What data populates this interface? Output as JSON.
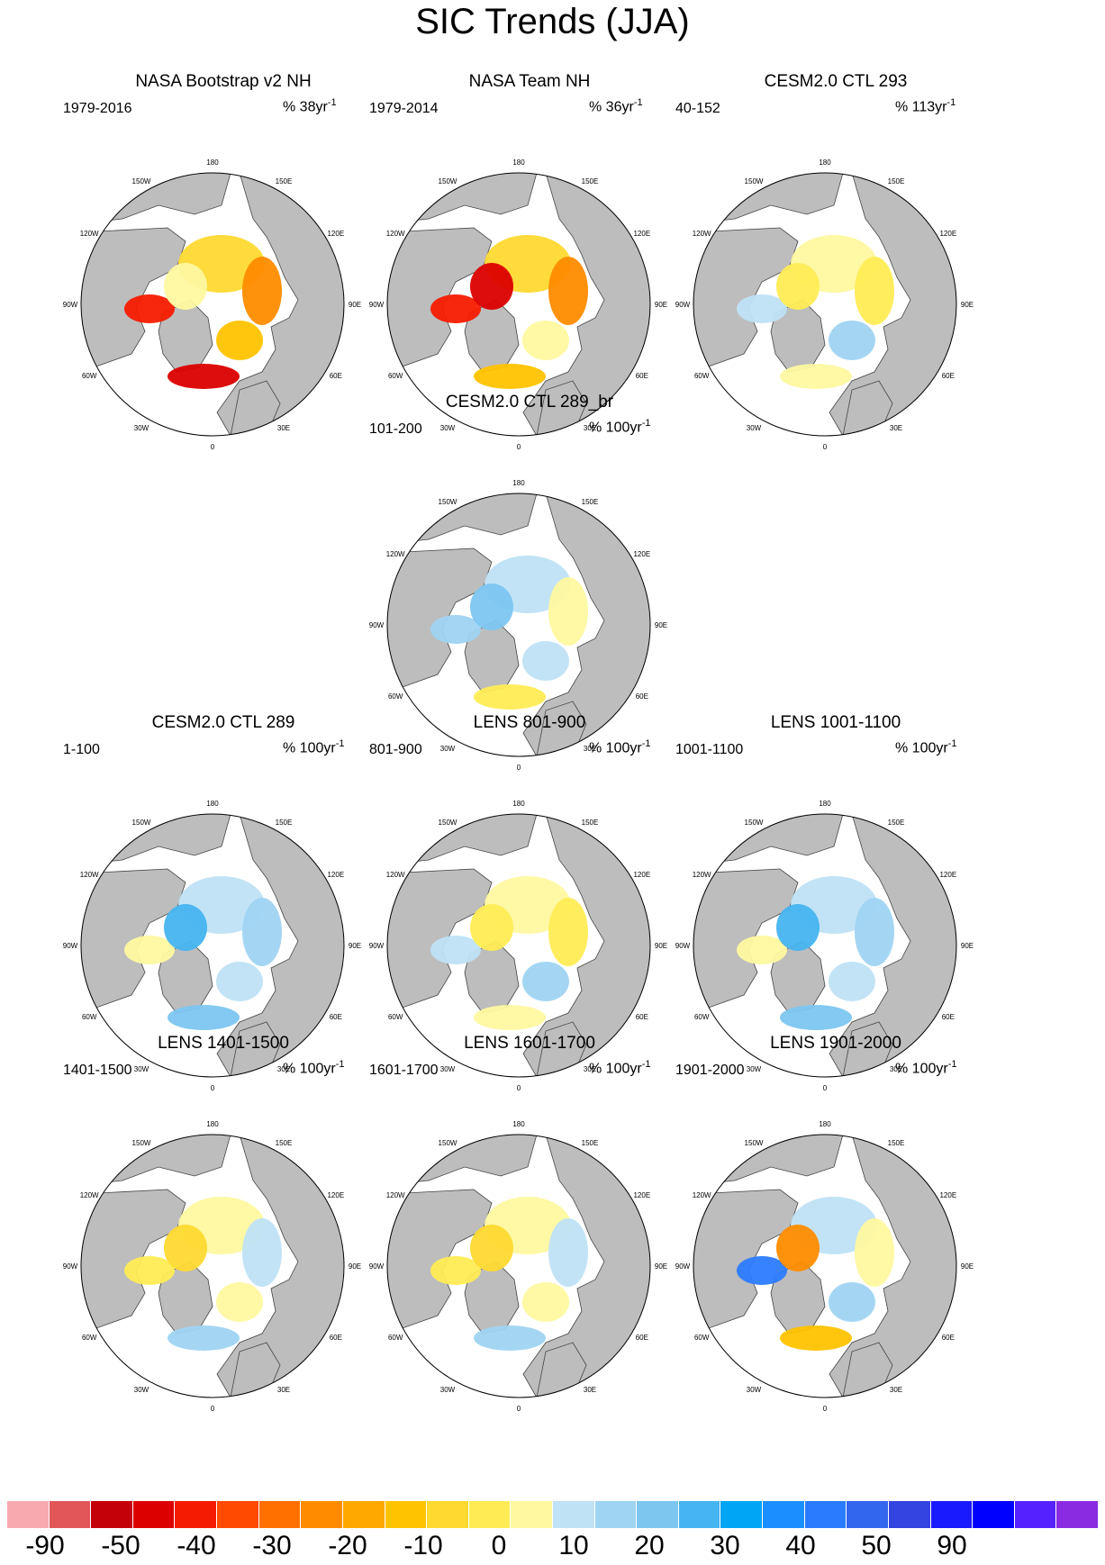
{
  "title": "SIC Trends (JJA)",
  "longitude_labels": [
    "180",
    "150W",
    "150E",
    "120W",
    "120E",
    "90W",
    "90E",
    "60W",
    "60E",
    "30W",
    "30E",
    "0"
  ],
  "panels": [
    {
      "title": "NASA Bootstrap v2 NH",
      "period": "1979-2016",
      "units_prefix": "% 38yr",
      "units_sup": "-1",
      "style": "obs_bootstrap"
    },
    {
      "title": "NASA Team NH",
      "period": "1979-2014",
      "units_prefix": "% 36yr",
      "units_sup": "-1",
      "style": "obs_team"
    },
    {
      "title": "CESM2.0 CTL 293",
      "period": "40-152",
      "units_prefix": "% 113yr",
      "units_sup": "-1",
      "style": "yellow"
    },
    {
      "title": "CESM2.0 CTL 289_br",
      "period": "101-200",
      "units_prefix": "% 100yr",
      "units_sup": "-1",
      "style": "mixed_blue"
    },
    {
      "title": "CESM2.0 CTL 289",
      "period": "1-100",
      "units_prefix": "% 100yr",
      "units_sup": "-1",
      "style": "blue"
    },
    {
      "title": "LENS 801-900",
      "period": "801-900",
      "units_prefix": "% 100yr",
      "units_sup": "-1",
      "style": "yellow"
    },
    {
      "title": "LENS 1001-1100",
      "period": "1001-1100",
      "units_prefix": "% 100yr",
      "units_sup": "-1",
      "style": "blue"
    },
    {
      "title": "LENS 1401-1500",
      "period": "1401-1500",
      "units_prefix": "% 100yr",
      "units_sup": "-1",
      "style": "mixed_yellow"
    },
    {
      "title": "LENS 1601-1700",
      "period": "1601-1700",
      "units_prefix": "% 100yr",
      "units_sup": "-1",
      "style": "mixed_yellow"
    },
    {
      "title": "LENS 1901-2000",
      "period": "1901-2000",
      "units_prefix": "% 100yr",
      "units_sup": "-1",
      "style": "mixed_blue_strong"
    }
  ],
  "colorbar": {
    "colors": [
      "#f8a9b0",
      "#e25658",
      "#c40009",
      "#dc0000",
      "#f51b00",
      "#ff4a00",
      "#ff7000",
      "#ff8c00",
      "#ffa800",
      "#ffc300",
      "#ffd930",
      "#ffec55",
      "#fff8a0",
      "#bfe2f5",
      "#9fd4f2",
      "#7cc6f0",
      "#46b4f0",
      "#00a5f5",
      "#1a8fff",
      "#2b7bff",
      "#3366ee",
      "#3344e0",
      "#1a1aff",
      "#0000ff",
      "#5522ff",
      "#8a2be2"
    ],
    "labels": [
      "-90",
      "-50",
      "-40",
      "-30",
      "-20",
      "-10",
      "0",
      "10",
      "20",
      "30",
      "40",
      "50",
      "90"
    ]
  },
  "land_color": "#bdbdbd"
}
